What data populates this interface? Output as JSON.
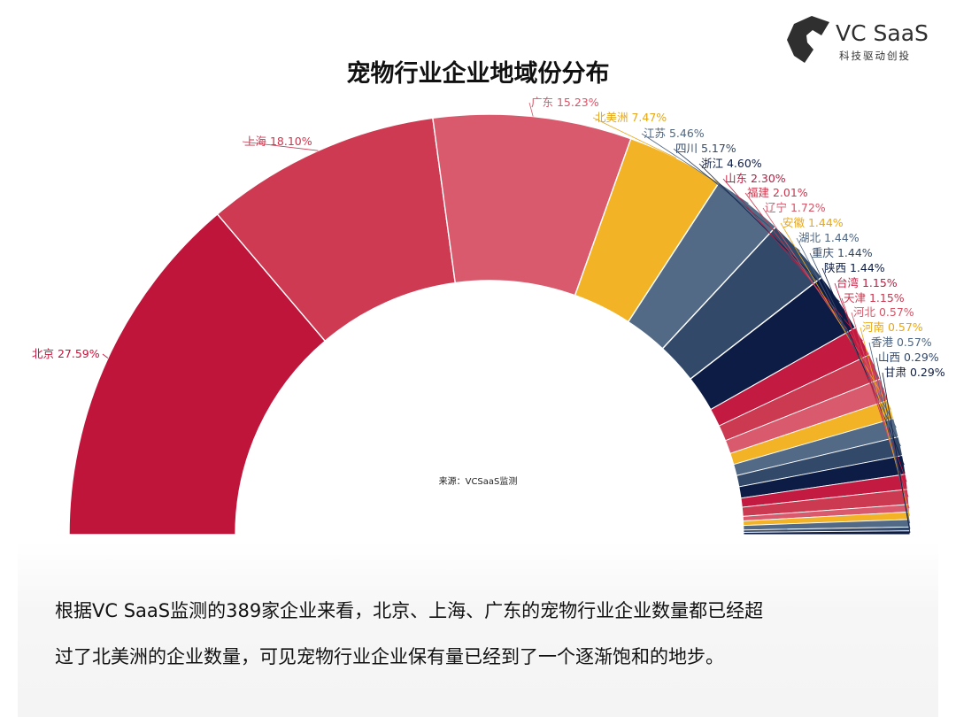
{
  "logo": {
    "brand": "VC SaaS",
    "tagline": "科技驱动创投"
  },
  "chart_data": {
    "type": "pie",
    "subtype": "semi-donut",
    "title": "宠物行业企业地域份分布",
    "source": "来源：VCSaaS监测",
    "unit": "%",
    "slices": [
      {
        "name": "北京",
        "value": 27.59,
        "label": "北京 27.59%",
        "color": "#c0153b",
        "label_color": "#c0153b"
      },
      {
        "name": "上海",
        "value": 18.1,
        "label": "上海 18.10%",
        "color": "#ce3a51",
        "label_color": "#c8374e"
      },
      {
        "name": "广东",
        "value": 15.23,
        "label": "广东 15.23%",
        "color": "#d95a6c",
        "label_color": "#d45668"
      },
      {
        "name": "北美洲",
        "value": 7.47,
        "label": "北美洲 7.47%",
        "color": "#f2b426",
        "label_color": "#e6a71c"
      },
      {
        "name": "江苏",
        "value": 5.46,
        "label": "江苏 5.46%",
        "color": "#536a86",
        "label_color": "#4f6682"
      },
      {
        "name": "四川",
        "value": 5.17,
        "label": "四川 5.17%",
        "color": "#33496a",
        "label_color": "#33496a"
      },
      {
        "name": "浙江",
        "value": 4.6,
        "label": "浙江 4.60%",
        "color": "#0d1c44",
        "label_color": "#0d1c44"
      },
      {
        "name": "山东",
        "value": 2.3,
        "label": "山东 2.30%",
        "color": "#c21a40",
        "label_color": "#c21a40"
      },
      {
        "name": "福建",
        "value": 2.01,
        "label": "福建 2.01%",
        "color": "#cc3a52",
        "label_color": "#c8374e"
      },
      {
        "name": "辽宁",
        "value": 1.72,
        "label": "辽宁 1.72%",
        "color": "#d85a6c",
        "label_color": "#d45668"
      },
      {
        "name": "安徽",
        "value": 1.44,
        "label": "安徽 1.44%",
        "color": "#f2b426",
        "label_color": "#e6a71c"
      },
      {
        "name": "湖北",
        "value": 1.44,
        "label": "湖北 1.44%",
        "color": "#536a86",
        "label_color": "#4f6682"
      },
      {
        "name": "重庆",
        "value": 1.44,
        "label": "重庆 1.44%",
        "color": "#33496a",
        "label_color": "#33496a"
      },
      {
        "name": "陕西",
        "value": 1.44,
        "label": "陕西 1.44%",
        "color": "#0d1c44",
        "label_color": "#0d1c44"
      },
      {
        "name": "台湾",
        "value": 1.15,
        "label": "台湾 1.15%",
        "color": "#c21a40",
        "label_color": "#c21a40"
      },
      {
        "name": "天津",
        "value": 1.15,
        "label": "天津 1.15%",
        "color": "#cc3a52",
        "label_color": "#c8374e"
      },
      {
        "name": "河北",
        "value": 0.57,
        "label": "河北 0.57%",
        "color": "#d85a6c",
        "label_color": "#d45668"
      },
      {
        "name": "河南",
        "value": 0.57,
        "label": "河南 0.57%",
        "color": "#f2b426",
        "label_color": "#e6a71c"
      },
      {
        "name": "香港",
        "value": 0.57,
        "label": "香港 0.57%",
        "color": "#536a86",
        "label_color": "#4f6682"
      },
      {
        "name": "山西",
        "value": 0.29,
        "label": "山西 0.29%",
        "color": "#33496a",
        "label_color": "#33496a"
      },
      {
        "name": "甘肃",
        "value": 0.29,
        "label": "甘肃 0.29%",
        "color": "#0d1c44",
        "label_color": "#0d1c44"
      }
    ]
  },
  "description": {
    "line1": "根据VC SaaS监测的389家企业来看，北京、上海、广东的宠物行业企业数量都已经超",
    "line2": "过了北美洲的企业数量，可见宠物行业企业保有量已经到了一个逐渐饱和的地步。"
  }
}
